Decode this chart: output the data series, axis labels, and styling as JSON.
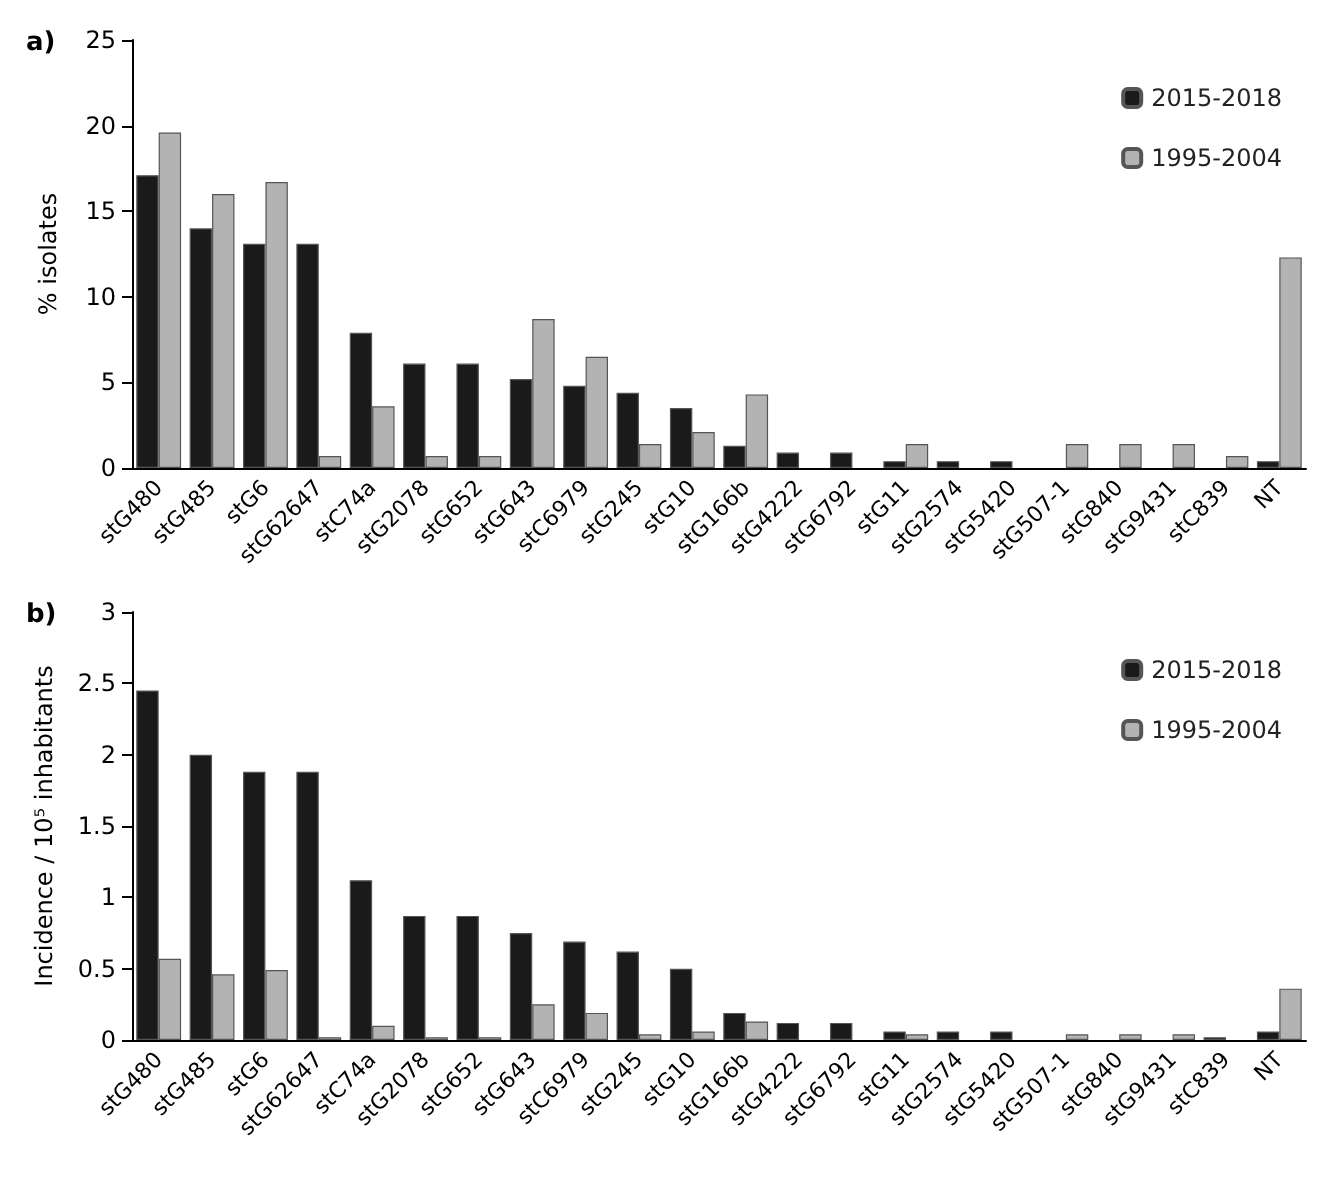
{
  "chart_data": [
    {
      "type": "bar",
      "title": "a)",
      "ylabel": "% isolates",
      "categories": [
        "stG480",
        "stG485",
        "stG6",
        "stG62647",
        "stC74a",
        "stG2078",
        "stG652",
        "stG643",
        "stC6979",
        "stG245",
        "stG10",
        "stG166b",
        "stG4222",
        "stG6792",
        "stG11",
        "stG2574",
        "stG5420",
        "stG507-1",
        "stG840",
        "stG9431",
        "stC839",
        "NT"
      ],
      "series": [
        {
          "name": "2015-2018",
          "color": "#1a1a1a",
          "values": [
            17.1,
            14.0,
            13.1,
            13.1,
            7.9,
            6.1,
            6.1,
            5.2,
            4.8,
            4.4,
            3.5,
            1.3,
            0.9,
            0.9,
            0.4,
            0.4,
            0.4,
            0,
            0,
            0,
            0,
            0.4
          ]
        },
        {
          "name": "1995-2004",
          "color": "#b3b3b3",
          "values": [
            19.6,
            16.0,
            16.7,
            0.7,
            3.6,
            0.7,
            0.7,
            8.7,
            6.5,
            1.4,
            2.1,
            4.3,
            0,
            0,
            1.4,
            0,
            0,
            1.4,
            1.4,
            1.4,
            0.7,
            12.3
          ]
        }
      ],
      "ylim": [
        0,
        25
      ],
      "yticks": [
        0,
        5,
        10,
        15,
        20,
        25
      ],
      "grid": false,
      "legend": "top right"
    },
    {
      "type": "bar",
      "title": "b)",
      "ylabel": "Incidence / 10⁵ inhabitants",
      "categories": [
        "stG480",
        "stG485",
        "stG6",
        "stG62647",
        "stC74a",
        "stG2078",
        "stG652",
        "stG643",
        "stC6979",
        "stG245",
        "stG10",
        "stG166b",
        "stG4222",
        "stG6792",
        "stG11",
        "stG2574",
        "stG5420",
        "stG507-1",
        "stG840",
        "stG9431",
        "stC839",
        "NT"
      ],
      "series": [
        {
          "name": "2015-2018",
          "color": "#1a1a1a",
          "values": [
            2.45,
            2.0,
            1.88,
            1.88,
            1.12,
            0.87,
            0.87,
            0.75,
            0.69,
            0.62,
            0.5,
            0.19,
            0.12,
            0.12,
            0.06,
            0.06,
            0.06,
            0,
            0,
            0,
            0.02,
            0.06
          ]
        },
        {
          "name": "1995-2004",
          "color": "#b3b3b3",
          "values": [
            0.57,
            0.46,
            0.49,
            0.02,
            0.1,
            0.02,
            0.02,
            0.25,
            0.19,
            0.04,
            0.06,
            0.13,
            0,
            0,
            0.04,
            0,
            0,
            0.04,
            0.04,
            0.04,
            0,
            0.36
          ]
        }
      ],
      "ylim": [
        0,
        3
      ],
      "yticks": [
        0,
        0.5,
        1,
        1.5,
        2,
        2.5,
        3
      ],
      "grid": false,
      "legend": "top right"
    }
  ]
}
